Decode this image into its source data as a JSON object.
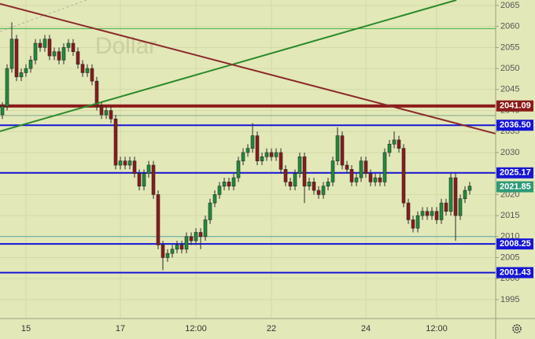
{
  "chart_data": {
    "type": "candlestick",
    "watermark": "Dollar",
    "categories": [
      null,
      null,
      null,
      null,
      null,
      "15",
      null,
      null,
      null,
      null,
      null,
      null,
      null,
      null,
      null,
      null,
      null,
      null,
      null,
      null,
      null,
      null,
      null,
      null,
      null,
      "17",
      null,
      null,
      null,
      null,
      null,
      null,
      null,
      null,
      null,
      null,
      null,
      null,
      null,
      null,
      null,
      "12:00",
      null,
      null,
      null,
      null,
      null,
      null,
      null,
      null,
      null,
      null,
      null,
      null,
      null,
      null,
      null,
      "22",
      null,
      null,
      null,
      null,
      null,
      null,
      null,
      null,
      null,
      null,
      null,
      null,
      null,
      null,
      null,
      null,
      null,
      null,
      null,
      "24",
      null,
      null,
      null,
      null,
      null,
      null,
      null,
      null,
      null,
      null,
      null,
      null,
      null,
      null,
      "12:00",
      null,
      null,
      null,
      null,
      null,
      null,
      null
    ],
    "open": [
      2039,
      2041,
      2050,
      2057,
      2048,
      2049,
      2050,
      2052,
      2056,
      2055,
      2057,
      2053,
      2054,
      2052,
      2055,
      2056,
      2054,
      2051,
      2049,
      2050,
      2047,
      2041,
      2039,
      2040,
      2038,
      2027,
      2028,
      2027,
      2028,
      2025,
      2022,
      2025,
      2027,
      2020,
      2008,
      2005,
      2006,
      2007,
      2008,
      2007,
      2010,
      2009,
      2011,
      2010,
      2014,
      2018,
      2020,
      2022,
      2023,
      2022,
      2024,
      2028,
      2030,
      2031,
      2034,
      2028,
      2029,
      2030,
      2029,
      2030,
      2026,
      2023,
      2022,
      2025,
      2029,
      2022,
      2023,
      2021,
      2020,
      2022,
      2023,
      2028,
      2034,
      2027,
      2026,
      2023,
      2024,
      2028,
      2025,
      2023,
      2024,
      2023,
      2030,
      2032,
      2033,
      2031,
      2018,
      2014,
      2012,
      2015,
      2016,
      2015,
      2016,
      2014,
      2018,
      2016,
      2024,
      2015,
      2019,
      2021
    ],
    "high": [
      2042,
      2051,
      2061,
      2058,
      2050,
      2051,
      2053,
      2057,
      2057,
      2058,
      2058,
      2055,
      2055,
      2056,
      2057,
      2057,
      2055,
      2052,
      2051,
      2051,
      2048,
      2042,
      2041,
      2041,
      2039,
      2029,
      2029,
      2029,
      2029,
      2026,
      2026,
      2028,
      2028,
      2021,
      2009,
      2007,
      2008,
      2009,
      2009,
      2011,
      2011,
      2012,
      2012,
      2015,
      2019,
      2021,
      2023,
      2024,
      2024,
      2025,
      2029,
      2031,
      2032,
      2037,
      2035,
      2030,
      2031,
      2031,
      2031,
      2031,
      2027,
      2024,
      2026,
      2030,
      2030,
      2024,
      2024,
      2022,
      2023,
      2024,
      2029,
      2036,
      2035,
      2028,
      2027,
      2025,
      2029,
      2029,
      2026,
      2025,
      2025,
      2031,
      2033,
      2035,
      2034,
      2032,
      2019,
      2015,
      2016,
      2017,
      2017,
      2017,
      2017,
      2019,
      2019,
      2025,
      2025,
      2020,
      2022,
      2023
    ],
    "low": [
      2038,
      2040,
      2049,
      2047,
      2047,
      2048,
      2049,
      2051,
      2054,
      2054,
      2052,
      2052,
      2051,
      2051,
      2054,
      2053,
      2050,
      2048,
      2048,
      2046,
      2040,
      2038,
      2038,
      2037,
      2026,
      2026,
      2026,
      2026,
      2024,
      2021,
      2021,
      2024,
      2019,
      2007,
      2002,
      2004,
      2005,
      2006,
      2006,
      2006,
      2008,
      2008,
      2007,
      2009,
      2013,
      2017,
      2019,
      2021,
      2021,
      2021,
      2023,
      2027,
      2029,
      2030,
      2027,
      2027,
      2028,
      2028,
      2028,
      2025,
      2022,
      2021,
      2021,
      2024,
      2018,
      2021,
      2020,
      2019,
      2019,
      2021,
      2022,
      2027,
      2026,
      2025,
      2022,
      2022,
      2023,
      2024,
      2022,
      2022,
      2022,
      2022,
      2029,
      2031,
      2030,
      2017,
      2013,
      2011,
      2011,
      2014,
      2014,
      2014,
      2013,
      2013,
      2015,
      2015,
      2009,
      2014,
      2018,
      2020
    ],
    "close": [
      2041,
      2050,
      2057,
      2048,
      2049,
      2050,
      2052,
      2056,
      2055,
      2057,
      2053,
      2054,
      2052,
      2055,
      2056,
      2054,
      2051,
      2049,
      2050,
      2047,
      2041,
      2039,
      2040,
      2038,
      2027,
      2028,
      2027,
      2028,
      2025,
      2022,
      2025,
      2027,
      2020,
      2008,
      2005,
      2006,
      2007,
      2008,
      2007,
      2010,
      2009,
      2011,
      2010,
      2014,
      2018,
      2020,
      2022,
      2023,
      2022,
      2024,
      2028,
      2030,
      2031,
      2034,
      2028,
      2029,
      2030,
      2029,
      2030,
      2026,
      2023,
      2022,
      2025,
      2029,
      2022,
      2023,
      2021,
      2020,
      2022,
      2023,
      2028,
      2034,
      2027,
      2026,
      2023,
      2024,
      2028,
      2025,
      2023,
      2024,
      2023,
      2030,
      2032,
      2033,
      2031,
      2018,
      2014,
      2012,
      2015,
      2016,
      2015,
      2016,
      2014,
      2018,
      2016,
      2024,
      2015,
      2019,
      2021,
      2022
    ],
    "up_color": "#1e8c3a",
    "down_color": "#8b1a1a",
    "xlim": [
      -0.5,
      104.5
    ],
    "ylim": [
      1990.5,
      2066.3
    ],
    "yticks": [
      1995,
      2000,
      2005,
      2010,
      2015,
      2020,
      2025,
      2030,
      2035,
      2040,
      2045,
      2050,
      2055,
      2060,
      2065
    ],
    "grid": true,
    "levels": [
      {
        "value": 2059.5,
        "color": "#3cb043",
        "style": "thin"
      },
      {
        "value": 2041.09,
        "color": "#8b1a1a",
        "style": "thick",
        "show_label": true
      },
      {
        "value": 2038.8,
        "color": "#7fa88a",
        "style": "thin"
      },
      {
        "value": 2036.5,
        "label": "2036.50",
        "color": "#1515d6",
        "style": "medium",
        "show_label": true
      },
      {
        "value": 2025.17,
        "color": "#1515d6",
        "style": "medium",
        "show_label": true
      },
      {
        "value": 2021.85,
        "color": "#2e9a78",
        "style": "none",
        "show_label": true
      },
      {
        "value": 2010,
        "color": "#5aa6a6",
        "style": "thin"
      },
      {
        "value": 2008.25,
        "color": "#1515d6",
        "style": "medium",
        "show_label": true
      },
      {
        "value": 2001.43,
        "color": "#1515d6",
        "style": "medium",
        "show_label": true
      }
    ],
    "trendlines": [
      {
        "color": "#2a8a2a",
        "x": [
          -0.5,
          96.2
        ],
        "y": [
          2035.05,
          2066.3
        ]
      },
      {
        "color": "#8b2a2a",
        "x": [
          -0.5,
          104.5
        ],
        "y": [
          2065.4,
          2034.5
        ]
      }
    ]
  }
}
